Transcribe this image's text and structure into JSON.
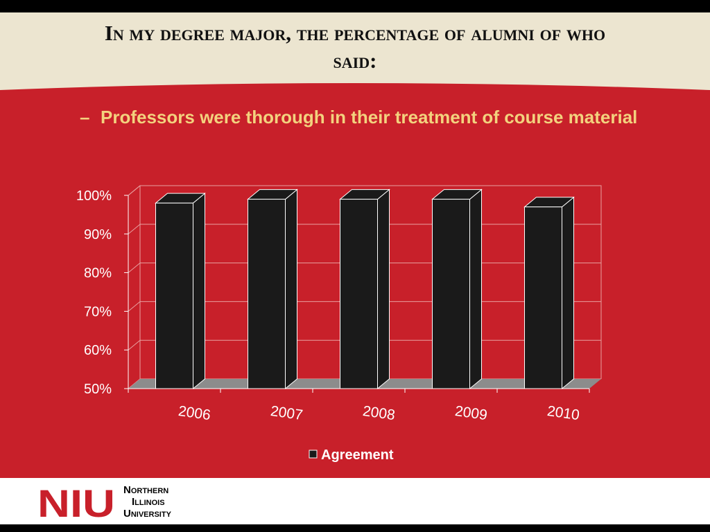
{
  "slide": {
    "title": "In my degree major, the percentage of alumni of who said:",
    "bullet": {
      "marker": "–",
      "text": "Professors were thorough in their treatment of course material"
    },
    "logo": {
      "mark": "NIU",
      "lines": [
        "Northern",
        "Illinois",
        "University"
      ]
    }
  },
  "chart_data": {
    "type": "bar",
    "categories": [
      "2006",
      "2007",
      "2008",
      "2009",
      "2010"
    ],
    "series": [
      {
        "name": "Agreement",
        "color": "#1a1a1a",
        "values": [
          98,
          99,
          99,
          99,
          97
        ]
      }
    ],
    "ylim": [
      50,
      100
    ],
    "yticks": [
      {
        "value": 50,
        "label": "50%"
      },
      {
        "value": 60,
        "label": "60%"
      },
      {
        "value": 70,
        "label": "70%"
      },
      {
        "value": 80,
        "label": "80%"
      },
      {
        "value": 90,
        "label": "90%"
      },
      {
        "value": 100,
        "label": "100%"
      }
    ],
    "grid": true,
    "legend": "bottom"
  }
}
